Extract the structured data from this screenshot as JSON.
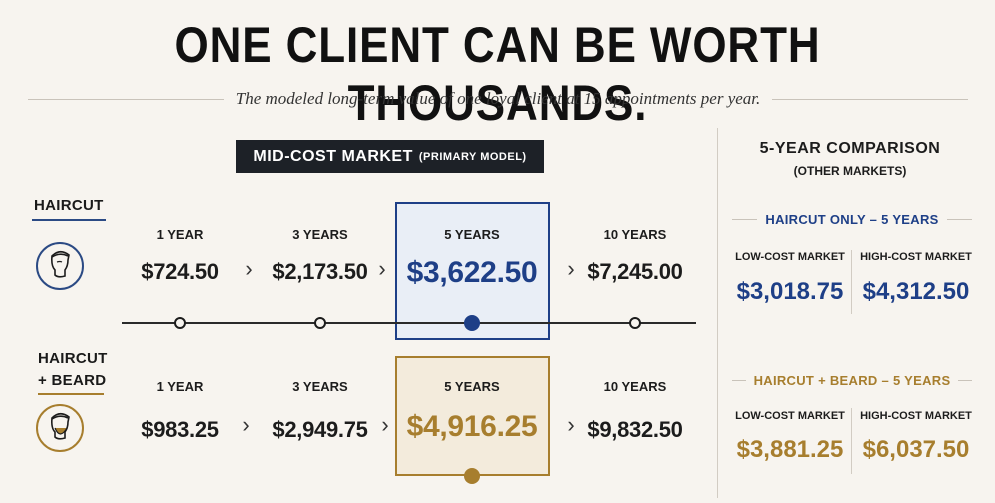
{
  "title": "ONE CLIENT CAN BE WORTH THOUSANDS.",
  "subtitle": "The modeled long-term value of one loyal client at 15 appointments per year.",
  "badge": {
    "main": "MID-COST MARKET",
    "sub": "(PRIMARY MODEL)"
  },
  "colors": {
    "navy": "#1e3f87",
    "gold": "#a77e2e",
    "dark": "#1d2127"
  },
  "rows": [
    {
      "label_line1": "HAIRCUT",
      "label_line2": "",
      "icon": "man-profile-icon",
      "periods": [
        {
          "label": "1 YEAR",
          "value": "$724.50"
        },
        {
          "label": "3 YEARS",
          "value": "$2,173.50"
        },
        {
          "label": "5 YEARS",
          "value": "$3,622.50"
        },
        {
          "label": "10 YEARS",
          "value": "$7,245.00"
        }
      ]
    },
    {
      "label_line1": "HAIRCUT",
      "label_line2": "+ BEARD",
      "icon": "bearded-man-profile-icon",
      "periods": [
        {
          "label": "1 YEAR",
          "value": "$983.25"
        },
        {
          "label": "3 YEARS",
          "value": "$2,949.75"
        },
        {
          "label": "5 YEARS",
          "value": "$4,916.25"
        },
        {
          "label": "10 YEARS",
          "value": "$9,832.50"
        }
      ]
    }
  ],
  "comparison": {
    "title": "5-YEAR COMPARISON",
    "subtitle": "(OTHER MARKETS)",
    "sections": [
      {
        "heading": "HAIRCUT ONLY – 5 YEARS",
        "low_label": "LOW-COST MARKET",
        "low_value": "$3,018.75",
        "high_label": "HIGH-COST MARKET",
        "high_value": "$4,312.50"
      },
      {
        "heading": "HAIRCUT + BEARD – 5 YEARS",
        "low_label": "LOW-COST MARKET",
        "low_value": "$3,881.25",
        "high_label": "HIGH-COST MARKET",
        "high_value": "$6,037.50"
      }
    ]
  }
}
